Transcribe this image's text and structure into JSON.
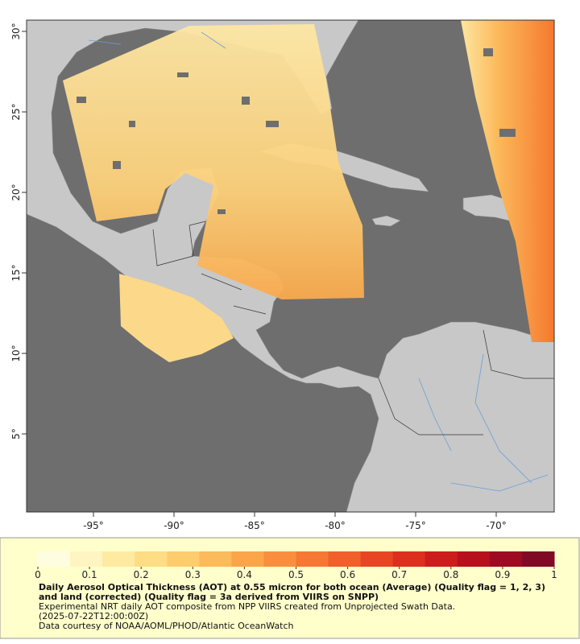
{
  "map": {
    "xlim": [
      -99.15,
      -66.4
    ],
    "ylim": [
      0.15,
      30.7
    ],
    "xticks": [
      {
        "value": -95,
        "label": "-95°"
      },
      {
        "value": -90,
        "label": "-90°"
      },
      {
        "value": -85,
        "label": "-85°"
      },
      {
        "value": -80,
        "label": "-80°"
      },
      {
        "value": -75,
        "label": "-75°"
      },
      {
        "value": -70,
        "label": "-70°"
      }
    ],
    "yticks": [
      {
        "value": 5,
        "label": "5°"
      },
      {
        "value": 10,
        "label": "10°"
      },
      {
        "value": 15,
        "label": "15°"
      },
      {
        "value": 20,
        "label": "20°"
      },
      {
        "value": 25,
        "label": "25°"
      },
      {
        "value": 30,
        "label": "30°"
      }
    ]
  },
  "colorbar": {
    "range": [
      0,
      1
    ],
    "ticks": [
      0,
      0.1,
      0.2,
      0.3,
      0.4,
      0.5,
      0.6,
      0.7,
      0.8,
      0.9,
      1
    ],
    "colors": [
      "#fffde0",
      "#fff5c2",
      "#feeaa0",
      "#fedd85",
      "#fdcd6d",
      "#fcba5a",
      "#fba54b",
      "#f98f3e",
      "#f67833",
      "#f15f2a",
      "#e84622",
      "#dc2f1d",
      "#cc1c1b",
      "#b7111e",
      "#9d0a22",
      "#800a26"
    ]
  },
  "caption": {
    "title": "Daily Aerosol Optical Thickness (AOT) at 0.55 micron for both ocean (Average) (Quality flag = 1, 2, 3) and land (corrected) (Quality flag = 3a derived from VIIRS on SNPP)",
    "line1": "Experimental NRT daily AOT composite from NPP VIIRS created from Unprojected Swath Data.",
    "line2": "(2025-07-22T12:00:00Z)",
    "line3": "Data courtesy of NOAA/AOML/PHOD/Atlantic OceanWatch"
  }
}
